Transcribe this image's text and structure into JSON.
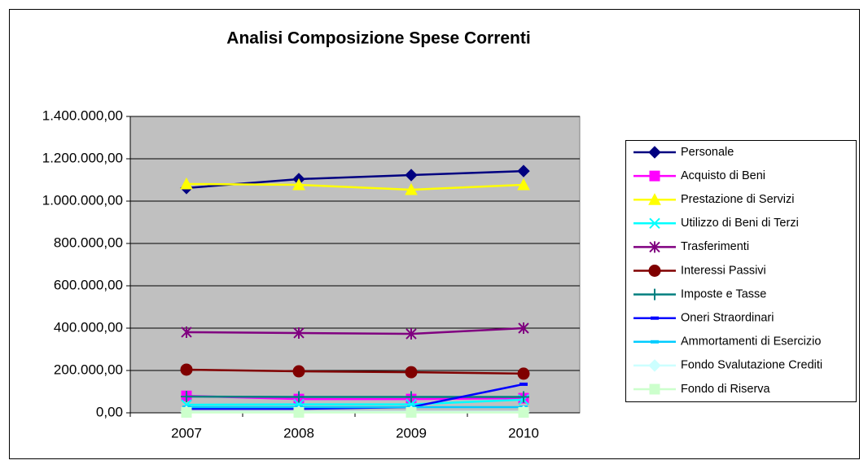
{
  "chart_data": {
    "type": "line",
    "title": "Analisi Composizione Spese Correnti",
    "categories": [
      "2007",
      "2008",
      "2009",
      "2010"
    ],
    "ylim": [
      0,
      1400000
    ],
    "yticks": [
      {
        "value": 0,
        "label": "0,00"
      },
      {
        "value": 200000,
        "label": "200.000,00"
      },
      {
        "value": 400000,
        "label": "400.000,00"
      },
      {
        "value": 600000,
        "label": "600.000,00"
      },
      {
        "value": 800000,
        "label": "800.000,00"
      },
      {
        "value": 1000000,
        "label": "1.000.000,00"
      },
      {
        "value": 1200000,
        "label": "1.200.000,00"
      },
      {
        "value": 1400000,
        "label": "1.400.000,00"
      }
    ],
    "grid": true,
    "legend": "right",
    "series": [
      {
        "name": "Personale",
        "color": "#000080",
        "marker": "diamond",
        "values": [
          1062000,
          1104000,
          1123000,
          1142000
        ]
      },
      {
        "name": "Acquisto di Beni",
        "color": "#ff00ff",
        "marker": "square",
        "values": [
          80000,
          65000,
          65000,
          69000
        ]
      },
      {
        "name": "Prestazione di Servizi",
        "color": "#ffff00",
        "marker": "triangle",
        "values": [
          1081000,
          1077000,
          1054000,
          1077000
        ]
      },
      {
        "name": "Utilizzo di Beni di Terzi",
        "color": "#00ffff",
        "marker": "x",
        "values": [
          38000,
          40000,
          40000,
          62000
        ]
      },
      {
        "name": "Trasferimenti",
        "color": "#800080",
        "marker": "star",
        "values": [
          381000,
          377000,
          373000,
          400000
        ]
      },
      {
        "name": "Interessi Passivi",
        "color": "#800000",
        "marker": "circle",
        "values": [
          204000,
          196000,
          192000,
          185000
        ]
      },
      {
        "name": "Imposte e Tasse",
        "color": "#008080",
        "marker": "plus",
        "values": [
          77000,
          75000,
          75000,
          75000
        ]
      },
      {
        "name": "Oneri Straordinari",
        "color": "#0000ff",
        "marker": "dash",
        "values": [
          19000,
          19000,
          27000,
          135000
        ]
      },
      {
        "name": "Ammortamenti di Esercizio",
        "color": "#00ccff",
        "marker": "dash",
        "values": [
          27000,
          27000,
          27000,
          27000
        ]
      },
      {
        "name": "Fondo Svalutazione Crediti",
        "color": "#ccffff",
        "marker": "diamond",
        "values": [
          5000,
          5000,
          5000,
          5000
        ]
      },
      {
        "name": "Fondo di Riserva",
        "color": "#ccffcc",
        "marker": "square",
        "values": [
          2000,
          2000,
          2000,
          2000
        ]
      }
    ]
  }
}
